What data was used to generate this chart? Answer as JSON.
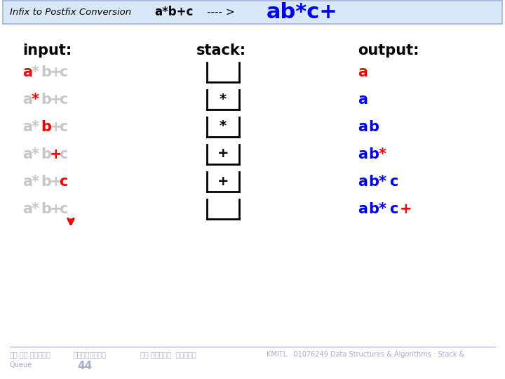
{
  "title_left": "Infix to Postfix Conversion",
  "title_mid": "a*b+c",
  "title_arrow": "---- >",
  "title_right": "ab*c+",
  "bg_color": "#ffffff",
  "header_outer": "#aabbdd",
  "header_inner": "#d8e8f8",
  "input_label": "input:",
  "stack_label": "stack:",
  "output_label": "output:",
  "rows": [
    {
      "input_parts": [
        [
          "a",
          "red"
        ],
        [
          "*",
          "gray"
        ],
        [
          "b",
          "gray"
        ],
        [
          "+",
          "gray"
        ],
        [
          "c",
          "gray"
        ]
      ],
      "stack_content": "",
      "output_parts": [
        [
          "a",
          "red"
        ]
      ]
    },
    {
      "input_parts": [
        [
          "a",
          "gray"
        ],
        [
          "*",
          "red"
        ],
        [
          "b",
          "gray"
        ],
        [
          "+",
          "gray"
        ],
        [
          "c",
          "gray"
        ]
      ],
      "stack_content": "*",
      "output_parts": [
        [
          "a",
          "blue"
        ]
      ]
    },
    {
      "input_parts": [
        [
          "a",
          "gray"
        ],
        [
          "*",
          "gray"
        ],
        [
          "b",
          "red"
        ],
        [
          "+",
          "gray"
        ],
        [
          "c",
          "gray"
        ]
      ],
      "stack_content": "*",
      "output_parts": [
        [
          "a",
          "blue"
        ],
        [
          "b",
          "blue"
        ]
      ]
    },
    {
      "input_parts": [
        [
          "a",
          "gray"
        ],
        [
          "*",
          "gray"
        ],
        [
          "b",
          "gray"
        ],
        [
          "+",
          "red"
        ],
        [
          "c",
          "gray"
        ]
      ],
      "stack_content": "+",
      "output_parts": [
        [
          "a",
          "blue"
        ],
        [
          "b",
          "blue"
        ],
        [
          "*",
          "red"
        ]
      ]
    },
    {
      "input_parts": [
        [
          "a",
          "gray"
        ],
        [
          "*",
          "gray"
        ],
        [
          "b",
          "gray"
        ],
        [
          "+",
          "gray"
        ],
        [
          "c",
          "red"
        ]
      ],
      "stack_content": "+",
      "output_parts": [
        [
          "a",
          "blue"
        ],
        [
          "b",
          "blue"
        ],
        [
          "*",
          "blue"
        ],
        [
          "c",
          "blue"
        ]
      ]
    },
    {
      "input_parts": [
        [
          "a",
          "gray"
        ],
        [
          "*",
          "gray"
        ],
        [
          "b",
          "gray"
        ],
        [
          "+",
          "gray"
        ],
        [
          "c",
          "gray"
        ]
      ],
      "stack_content": "",
      "output_parts": [
        [
          "a",
          "blue"
        ],
        [
          "b",
          "blue"
        ],
        [
          "*",
          "blue"
        ],
        [
          "c",
          "blue"
        ],
        [
          "+",
          "red"
        ]
      ]
    }
  ],
  "footer_left1": "รศ.ดร.บุญธร",
  "footer_left2": "เครอตราช",
  "footer_num": "44",
  "footer_mid": "รศ.กฆุวน  ศรบรณ",
  "footer_right": "KMITL   01076249 Data Structures & Algorithms : Stack &",
  "footer_row2_left": "Queue",
  "footer_color": "#aaaacc"
}
